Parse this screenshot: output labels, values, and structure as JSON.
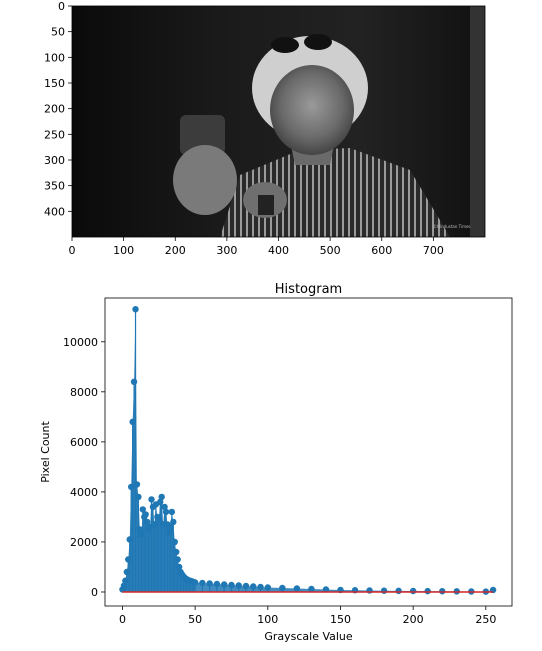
{
  "image_panel": {
    "type": "image",
    "x_ticks": [
      "0",
      "100",
      "200",
      "300",
      "400",
      "500",
      "600",
      "700"
    ],
    "y_ticks": [
      "0",
      "50",
      "100",
      "150",
      "200",
      "250",
      "300",
      "350",
      "400"
    ],
    "xlim": [
      0,
      800
    ],
    "ylim": [
      450,
      0
    ],
    "watermark": "©Hindustan Times"
  },
  "chart_data": {
    "type": "stem",
    "title": "Histogram",
    "xlabel": "Grayscale Value",
    "ylabel": "Pixel Count",
    "xlim": [
      -12,
      268
    ],
    "ylim": [
      -560,
      11750
    ],
    "x_ticks": [
      0,
      50,
      100,
      150,
      200,
      250
    ],
    "y_ticks": [
      0,
      2000,
      4000,
      6000,
      8000,
      10000
    ],
    "grid": false,
    "colors": {
      "stem": "#1f77b4",
      "baseline": "#d62728"
    },
    "x": [
      0,
      1,
      2,
      3,
      4,
      5,
      6,
      7,
      8,
      9,
      10,
      11,
      12,
      13,
      14,
      15,
      16,
      17,
      18,
      19,
      20,
      21,
      22,
      23,
      24,
      25,
      26,
      27,
      28,
      29,
      30,
      31,
      32,
      33,
      34,
      35,
      36,
      37,
      38,
      39,
      40,
      41,
      42,
      43,
      44,
      45,
      46,
      47,
      48,
      49,
      50,
      55,
      60,
      65,
      70,
      75,
      80,
      85,
      90,
      95,
      100,
      110,
      120,
      130,
      140,
      150,
      160,
      170,
      180,
      190,
      200,
      210,
      220,
      230,
      240,
      250,
      255
    ],
    "values": [
      100,
      250,
      450,
      800,
      1300,
      2100,
      4200,
      6800,
      8400,
      11300,
      4300,
      3800,
      2500,
      2300,
      3300,
      3000,
      3100,
      2800,
      2500,
      2600,
      3700,
      3400,
      2700,
      3500,
      3000,
      2900,
      3600,
      3800,
      2700,
      3400,
      3200,
      2700,
      2400,
      2600,
      3200,
      2800,
      2000,
      1600,
      1300,
      1000,
      800,
      700,
      620,
      560,
      520,
      480,
      460,
      440,
      420,
      400,
      380,
      360,
      340,
      320,
      300,
      280,
      260,
      240,
      220,
      200,
      180,
      160,
      140,
      120,
      100,
      80,
      70,
      60,
      50,
      45,
      40,
      35,
      30,
      25,
      20,
      15,
      80
    ]
  }
}
